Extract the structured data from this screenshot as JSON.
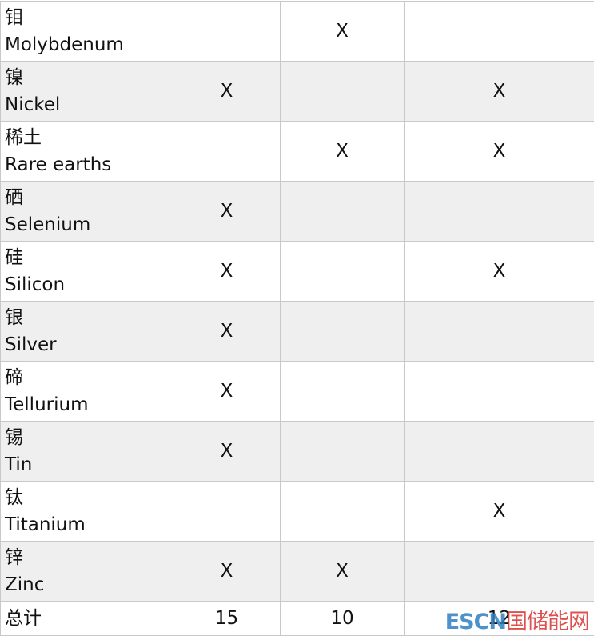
{
  "table": {
    "rows": [
      {
        "zh": "钼",
        "en": "Molybdenum",
        "marks": [
          null,
          "X",
          null
        ]
      },
      {
        "zh": "镍",
        "en": "Nickel",
        "marks": [
          "X",
          null,
          "X"
        ]
      },
      {
        "zh": "稀土",
        "en": "Rare earths",
        "marks": [
          null,
          "X",
          "X"
        ]
      },
      {
        "zh": "硒",
        "en": "Selenium",
        "marks": [
          "X",
          null,
          null
        ]
      },
      {
        "zh": "硅",
        "en": "Silicon",
        "marks": [
          "X",
          null,
          "X"
        ]
      },
      {
        "zh": "银",
        "en": "Silver",
        "marks": [
          "X",
          null,
          null
        ]
      },
      {
        "zh": "碲",
        "en": "Tellurium",
        "marks": [
          "X",
          null,
          null
        ]
      },
      {
        "zh": "锡",
        "en": "Tin",
        "marks": [
          "X",
          null,
          null
        ]
      },
      {
        "zh": "钛",
        "en": "Titanium",
        "marks": [
          null,
          null,
          "X"
        ]
      },
      {
        "zh": "锌",
        "en": "Zinc",
        "marks": [
          "X",
          "X",
          null
        ]
      }
    ],
    "total": {
      "label": "总计",
      "values": [
        15,
        10,
        12
      ]
    }
  },
  "watermark": {
    "brand": "ESCN",
    "name": "国储能网"
  }
}
